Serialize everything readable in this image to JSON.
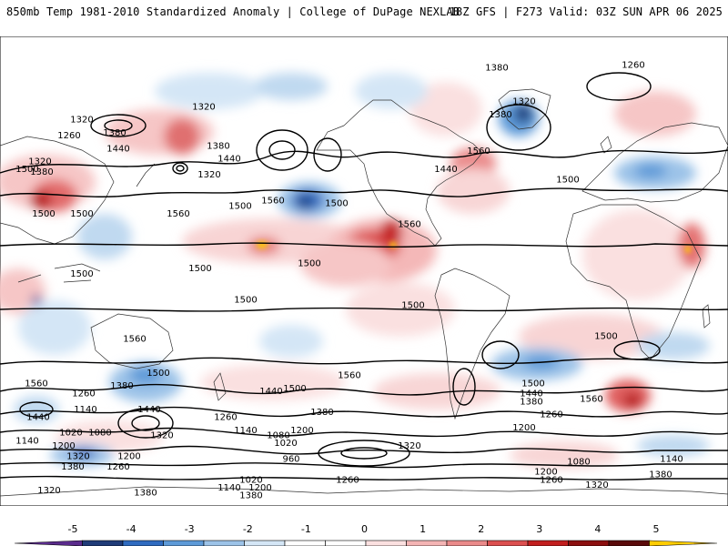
{
  "header": {
    "left": "850mb Temp 1981-2010 Standardized Anomaly | College of DuPage NEXLAB",
    "right": "18Z GFS | F273 Valid: 03Z SUN APR 06 2025"
  },
  "map": {
    "field": "850mb temperature standardized anomaly",
    "contours": "geopotential height (dam)",
    "height_labels": [
      {
        "text": "1320",
        "lon": -155,
        "lat": 58
      },
      {
        "text": "1260",
        "lon": -162,
        "lat": 52
      },
      {
        "text": "1320",
        "lon": -178,
        "lat": 42
      },
      {
        "text": "1380",
        "lon": -137,
        "lat": 53
      },
      {
        "text": "1440",
        "lon": -135,
        "lat": 47
      },
      {
        "text": "1380",
        "lon": -177,
        "lat": 38
      },
      {
        "text": "1500",
        "lon": -185,
        "lat": 39
      },
      {
        "text": "1500",
        "lon": -155,
        "lat": 22
      },
      {
        "text": "1500",
        "lon": -176,
        "lat": 22
      },
      {
        "text": "1560",
        "lon": -102,
        "lat": 22
      },
      {
        "text": "1500",
        "lon": -68,
        "lat": 25
      },
      {
        "text": "1320",
        "lon": -88,
        "lat": 63
      },
      {
        "text": "1380",
        "lon": -80,
        "lat": 48
      },
      {
        "text": "1440",
        "lon": -74,
        "lat": 43
      },
      {
        "text": "1320",
        "lon": -85,
        "lat": 37
      },
      {
        "text": "1560",
        "lon": -50,
        "lat": 27
      },
      {
        "text": "1500",
        "lon": -15,
        "lat": 26
      },
      {
        "text": "1440",
        "lon": 45,
        "lat": 39
      },
      {
        "text": "1560",
        "lon": 63,
        "lat": 46
      },
      {
        "text": "1500",
        "lon": 112,
        "lat": 35
      },
      {
        "text": "1380",
        "lon": 73,
        "lat": 78
      },
      {
        "text": "1320",
        "lon": 88,
        "lat": 65
      },
      {
        "text": "1380",
        "lon": 75,
        "lat": 60
      },
      {
        "text": "1260",
        "lon": 148,
        "lat": 79
      },
      {
        "text": "1560",
        "lon": 25,
        "lat": 18
      },
      {
        "text": "1500",
        "lon": -90,
        "lat": 1
      },
      {
        "text": "1500",
        "lon": -30,
        "lat": 3
      },
      {
        "text": "1500",
        "lon": -155,
        "lat": -1
      },
      {
        "text": "1500",
        "lon": -65,
        "lat": -11
      },
      {
        "text": "1500",
        "lon": 27,
        "lat": -13
      },
      {
        "text": "1500",
        "lon": 133,
        "lat": -25
      },
      {
        "text": "1560",
        "lon": -126,
        "lat": -26
      },
      {
        "text": "1500",
        "lon": -113,
        "lat": -39
      },
      {
        "text": "1560",
        "lon": -8,
        "lat": -40
      },
      {
        "text": "1560",
        "lon": -180,
        "lat": -43
      },
      {
        "text": "1440",
        "lon": -179,
        "lat": -56
      },
      {
        "text": "1380",
        "lon": -133,
        "lat": -44
      },
      {
        "text": "1260",
        "lon": -154,
        "lat": -47
      },
      {
        "text": "1140",
        "lon": -153,
        "lat": -53
      },
      {
        "text": "1020",
        "lon": -161,
        "lat": -62
      },
      {
        "text": "1080",
        "lon": -145,
        "lat": -62
      },
      {
        "text": "1200",
        "lon": -165,
        "lat": -67
      },
      {
        "text": "1320",
        "lon": -157,
        "lat": -71
      },
      {
        "text": "1380",
        "lon": -160,
        "lat": -75
      },
      {
        "text": "1260",
        "lon": -135,
        "lat": -75
      },
      {
        "text": "1200",
        "lon": -129,
        "lat": -71
      },
      {
        "text": "1140",
        "lon": -185,
        "lat": -65
      },
      {
        "text": "1440",
        "lon": -118,
        "lat": -53
      },
      {
        "text": "1320",
        "lon": -111,
        "lat": -63
      },
      {
        "text": "1260",
        "lon": -76,
        "lat": -56
      },
      {
        "text": "1440",
        "lon": -51,
        "lat": -46
      },
      {
        "text": "1500",
        "lon": -38,
        "lat": -45
      },
      {
        "text": "1380",
        "lon": -23,
        "lat": -54
      },
      {
        "text": "1200",
        "lon": -34,
        "lat": -61
      },
      {
        "text": "1140",
        "lon": -65,
        "lat": -61
      },
      {
        "text": "1080",
        "lon": -47,
        "lat": -63
      },
      {
        "text": "1020",
        "lon": -43,
        "lat": -66
      },
      {
        "text": "960",
        "lon": -40,
        "lat": -72
      },
      {
        "text": "1020",
        "lon": -62,
        "lat": -80
      },
      {
        "text": "1140",
        "lon": -74,
        "lat": -83
      },
      {
        "text": "1200",
        "lon": -57,
        "lat": -83
      },
      {
        "text": "1260",
        "lon": -9,
        "lat": -80
      },
      {
        "text": "1320",
        "lon": -173,
        "lat": -84
      },
      {
        "text": "1380",
        "lon": -120,
        "lat": -85
      },
      {
        "text": "1380",
        "lon": -62,
        "lat": -86
      },
      {
        "text": "1320",
        "lon": 25,
        "lat": -67
      },
      {
        "text": "1500",
        "lon": 93,
        "lat": -43
      },
      {
        "text": "1440",
        "lon": 92,
        "lat": -47
      },
      {
        "text": "1380",
        "lon": 92,
        "lat": -50
      },
      {
        "text": "1260",
        "lon": 103,
        "lat": -55
      },
      {
        "text": "1200",
        "lon": 88,
        "lat": -60
      },
      {
        "text": "1560",
        "lon": 125,
        "lat": -49
      },
      {
        "text": "1080",
        "lon": 118,
        "lat": -73
      },
      {
        "text": "1140",
        "lon": 169,
        "lat": -72
      },
      {
        "text": "1380",
        "lon": 163,
        "lat": -78
      },
      {
        "text": "1200",
        "lon": 100,
        "lat": -77
      },
      {
        "text": "1260",
        "lon": 103,
        "lat": -80
      },
      {
        "text": "1320",
        "lon": 128,
        "lat": -82
      }
    ]
  },
  "colorbar": {
    "ticks": [
      "-5",
      "-4",
      "-3",
      "-2",
      "-1",
      "0",
      "1",
      "2",
      "3",
      "4",
      "5"
    ],
    "colors": [
      "#5a2b8c",
      "#1f3b78",
      "#2f6bc0",
      "#5d9ad8",
      "#9cc3e8",
      "#d4e6f6",
      "#ffffff",
      "#ffffff",
      "#fbe0e0",
      "#f4b4b4",
      "#ea8a8a",
      "#dc5050",
      "#c21e1e",
      "#8c0f0f",
      "#5a0a0a",
      "#ffcc00"
    ]
  }
}
